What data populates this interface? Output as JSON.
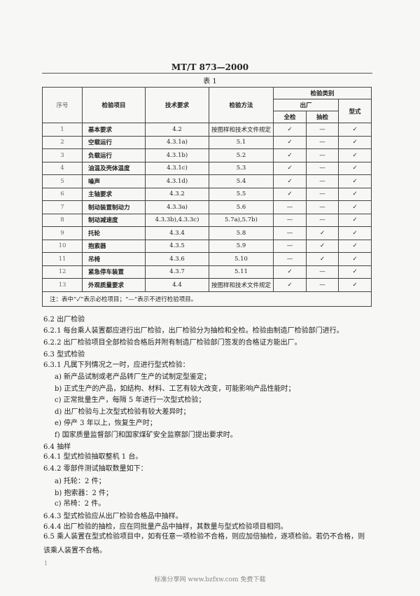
{
  "header": {
    "doc_code": "MT/T 873—2000",
    "table_title": "表 1"
  },
  "table": {
    "headers": {
      "seq": "序号",
      "item": "检验项目",
      "requirement": "技术要求",
      "method": "检验方法",
      "category": "检验类别",
      "factory": "出厂",
      "full": "全检",
      "sample": "抽检",
      "type": "型式"
    },
    "rows": [
      [
        "1",
        "基本要求",
        "4.2",
        "按图样和技术文件规定",
        "✓",
        "—",
        "✓"
      ],
      [
        "2",
        "空载运行",
        "4.3.1a)",
        "5.1",
        "✓",
        "—",
        "✓"
      ],
      [
        "3",
        "负载运行",
        "4.3.1b)",
        "5.2",
        "✓",
        "—",
        "✓"
      ],
      [
        "4",
        "油温及壳体温度",
        "4.3.1c)",
        "5.3",
        "✓",
        "—",
        "✓"
      ],
      [
        "5",
        "噪声",
        "4.3.1d)",
        "5.4",
        "✓",
        "—",
        "✓"
      ],
      [
        "6",
        "主轴要求",
        "4.3.2",
        "5.5",
        "✓",
        "—",
        "✓"
      ],
      [
        "7",
        "制动装置制动力",
        "4.3.3a)",
        "5.6",
        "—",
        "—",
        "✓"
      ],
      [
        "8",
        "制动减速度",
        "4.3.3b),4.3.3c)",
        "5.7a),5.7b)",
        "—",
        "—",
        "✓"
      ],
      [
        "9",
        "托轮",
        "4.3.4",
        "5.8",
        "—",
        "✓",
        "✓"
      ],
      [
        "10",
        "抱索器",
        "4.3.5",
        "5.9",
        "—",
        "✓",
        "✓"
      ],
      [
        "11",
        "吊椅",
        "4.3.6",
        "5.10",
        "—",
        "✓",
        "✓"
      ],
      [
        "12",
        "紧急停车装置",
        "4.3.7",
        "5.11",
        "✓",
        "—",
        "✓"
      ],
      [
        "13",
        "外观质量要求",
        "4.4",
        "按图样和技术文件规定",
        "✓",
        "—",
        "✓"
      ]
    ],
    "note": "注：表中“✓”表示必检项目；“—”表示不进行检验项目。"
  },
  "body": [
    "6.2  出厂检验",
    "6.2.1  每台乘人装置都应进行出厂检验，出厂检验分为抽检和全检。检验由制造厂检验部门进行。",
    "6.2.2  出厂检验项目全部检验合格后并附有制造厂检验部门签发的合格证方能出厂。",
    "6.3  型式检验",
    "6.3.1  凡属下列情况之一时，应进行型式检验：",
    "a) 新产品试制或老产品转厂生产的试制定型鉴定；",
    "b) 正式生产的产品，如结构、材料、工艺有较大改变，可能影响产品性能时；",
    "c) 正常批量生产，每隔 5 年进行一次型式检验；",
    "d) 出厂检验与上次型式检验有较大差异时；",
    "e) 停产 3 年以上，恢复生产时；",
    "f) 国家质量监督部门和国家煤矿安全监察部门提出要求时。",
    "6.4  抽样",
    "6.4.1  型式检验抽取整机 1 台。",
    "6.4.2  零部件测试抽取数量如下：",
    "a) 托轮：2 件；",
    "b) 抱索器：2 件；",
    "c) 吊椅：2 件。",
    "6.4.3  型式检验应从出厂检验合格品中抽样。",
    "6.4.4  出厂检验的抽检，应在同批量产品中抽样，其数量与型式检验项目相同。",
    "6.5  乘人装置在型式检验项目中，如有任意一项检验不合格，则应加倍抽检，逐项检验。若仍不合格，则",
    "该乘人装置不合格。"
  ],
  "footer": {
    "page_number": "1",
    "watermark": "标准分享网 www.bzfxw.com 免费下载"
  }
}
